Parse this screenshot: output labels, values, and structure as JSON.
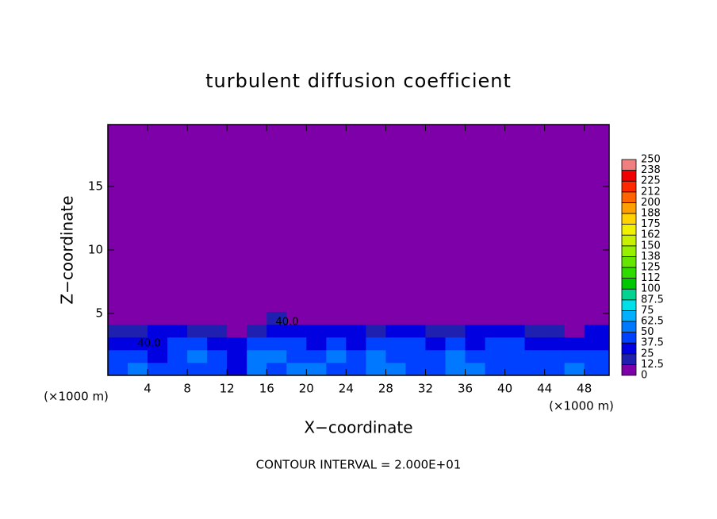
{
  "chart_data": {
    "type": "contour",
    "title": "turbulent diffusion coefficient",
    "xlabel": "X−coordinate",
    "ylabel": "Z−coordinate",
    "xunit": "(×1000 m)",
    "yunit": "(×1000 m)",
    "footer": "CONTOUR INTERVAL = 2.000E+01",
    "annotations": [
      "40.0",
      "40.0"
    ],
    "xlim": [
      0,
      50.5
    ],
    "ylim": [
      0.125,
      19.875
    ],
    "xticks": [
      4,
      8,
      12,
      16,
      20,
      24,
      28,
      32,
      36,
      40,
      44,
      48
    ],
    "yticks": [
      5,
      10,
      15
    ],
    "levels": [
      0,
      12.5,
      25,
      37.5,
      50,
      62.5,
      75,
      87.5,
      100,
      112,
      125,
      138,
      150,
      162,
      175,
      188,
      200,
      212,
      225,
      238,
      250
    ],
    "colors": [
      "#7d00a8",
      "#2020b0",
      "#0000e0",
      "#0040ff",
      "#0078ff",
      "#00b0ff",
      "#00e0e8",
      "#00d490",
      "#00c800",
      "#30dc00",
      "#64e600",
      "#96f000",
      "#c8f000",
      "#f0f000",
      "#ffd200",
      "#ffa000",
      "#ff6400",
      "#ff2800",
      "#f00000",
      "#f08080"
    ],
    "field": {
      "xbins": [
        0,
        2,
        4,
        6,
        8,
        10,
        12,
        14,
        16,
        18,
        20,
        22,
        24,
        26,
        28,
        30,
        32,
        34,
        36,
        38,
        40,
        42,
        44,
        46,
        48,
        50.5
      ],
      "zbins": [
        0.125,
        1.125,
        2.125,
        3.125,
        4.125,
        5.125
      ],
      "values": [
        [
          45,
          50,
          42,
          38,
          40,
          44,
          30,
          55,
          48,
          60,
          52,
          47,
          40,
          58,
          50,
          45,
          42,
          55,
          50,
          44,
          40,
          48,
          46,
          50,
          45
        ],
        [
          40,
          42,
          35,
          48,
          55,
          38,
          30,
          60,
          50,
          45,
          40,
          50,
          42,
          55,
          48,
          40,
          45,
          52,
          38,
          44,
          42,
          40,
          46,
          48,
          42
        ],
        [
          35,
          30,
          25,
          45,
          40,
          30,
          28,
          40,
          45,
          38,
          35,
          42,
          30,
          40,
          45,
          38,
          30,
          42,
          35,
          40,
          38,
          35,
          30,
          28,
          35
        ],
        [
          20,
          15,
          25,
          30,
          20,
          15,
          10,
          20,
          30,
          25,
          30,
          35,
          25,
          20,
          30,
          25,
          15,
          20,
          25,
          30,
          25,
          20,
          15,
          10,
          25
        ],
        [
          5,
          0,
          5,
          10,
          5,
          0,
          0,
          5,
          15,
          10,
          5,
          10,
          5,
          0,
          5,
          10,
          5,
          0,
          10,
          5,
          0,
          5,
          0,
          0,
          5
        ]
      ]
    }
  }
}
